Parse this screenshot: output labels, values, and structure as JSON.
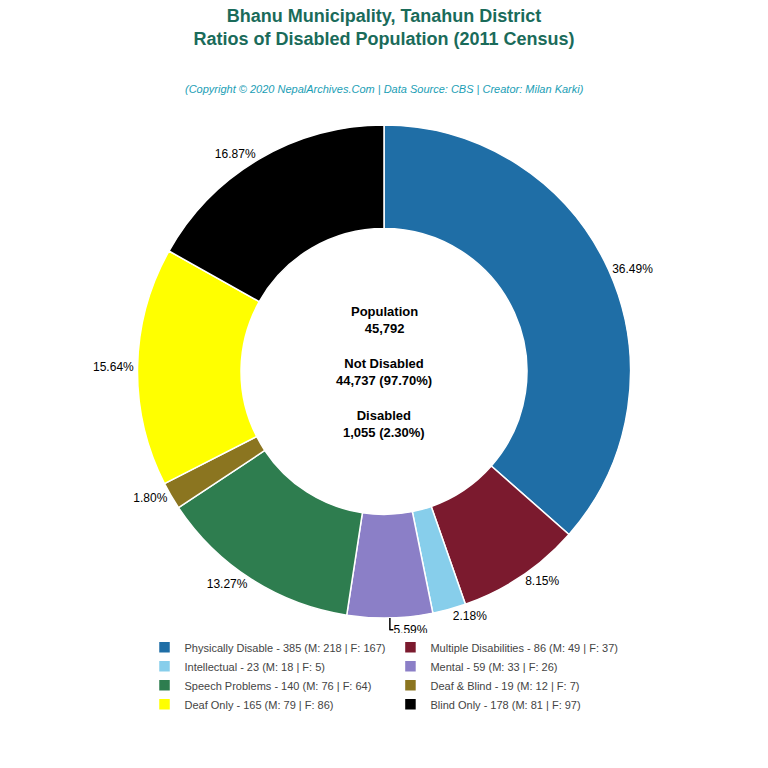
{
  "chart_data": {
    "type": "pie",
    "title": "Bhanu Municipality, Tanahun District\nRatios of Disabled Population (2011 Census)",
    "subtitle": "(Copyright © 2020 NepalArchives.Com | Data Source: CBS | Creator: Milan Karki)",
    "categories": [
      "Physically Disable - 385 (M: 218 | F: 167)",
      "Multiple Disabilities - 86 (M: 49 | F: 37)",
      "Intellectual - 23 (M: 18 | F: 5)",
      "Mental - 59 (M: 33 | F: 26)",
      "Speech Problems - 140 (M: 76 | F: 64)",
      "Deaf & Blind - 19 (M: 12 | F: 7)",
      "Deaf Only - 165 (M: 79 | F: 86)",
      "Blind Only - 178 (M: 81 | F: 97)"
    ],
    "values": [
      36.49,
      8.15,
      2.18,
      5.59,
      13.27,
      1.8,
      15.64,
      16.87
    ],
    "value_labels": [
      "36.49%",
      "8.15%",
      "2.18%",
      "5.59%",
      "13.27%",
      "1.80%",
      "15.64%",
      "16.87%"
    ],
    "colors": [
      "#1f6ea6",
      "#7b1a2e",
      "#87ceeb",
      "#8b7fc7",
      "#2e7d4f",
      "#8b7520",
      "#ffff00",
      "#000000"
    ],
    "data_labels": true,
    "legend": "bottom",
    "annotations": [
      "Population\n45,792",
      "Not Disabled\n44,737 (97.70%)",
      "Disabled\n1,055 (2.30%)"
    ]
  }
}
